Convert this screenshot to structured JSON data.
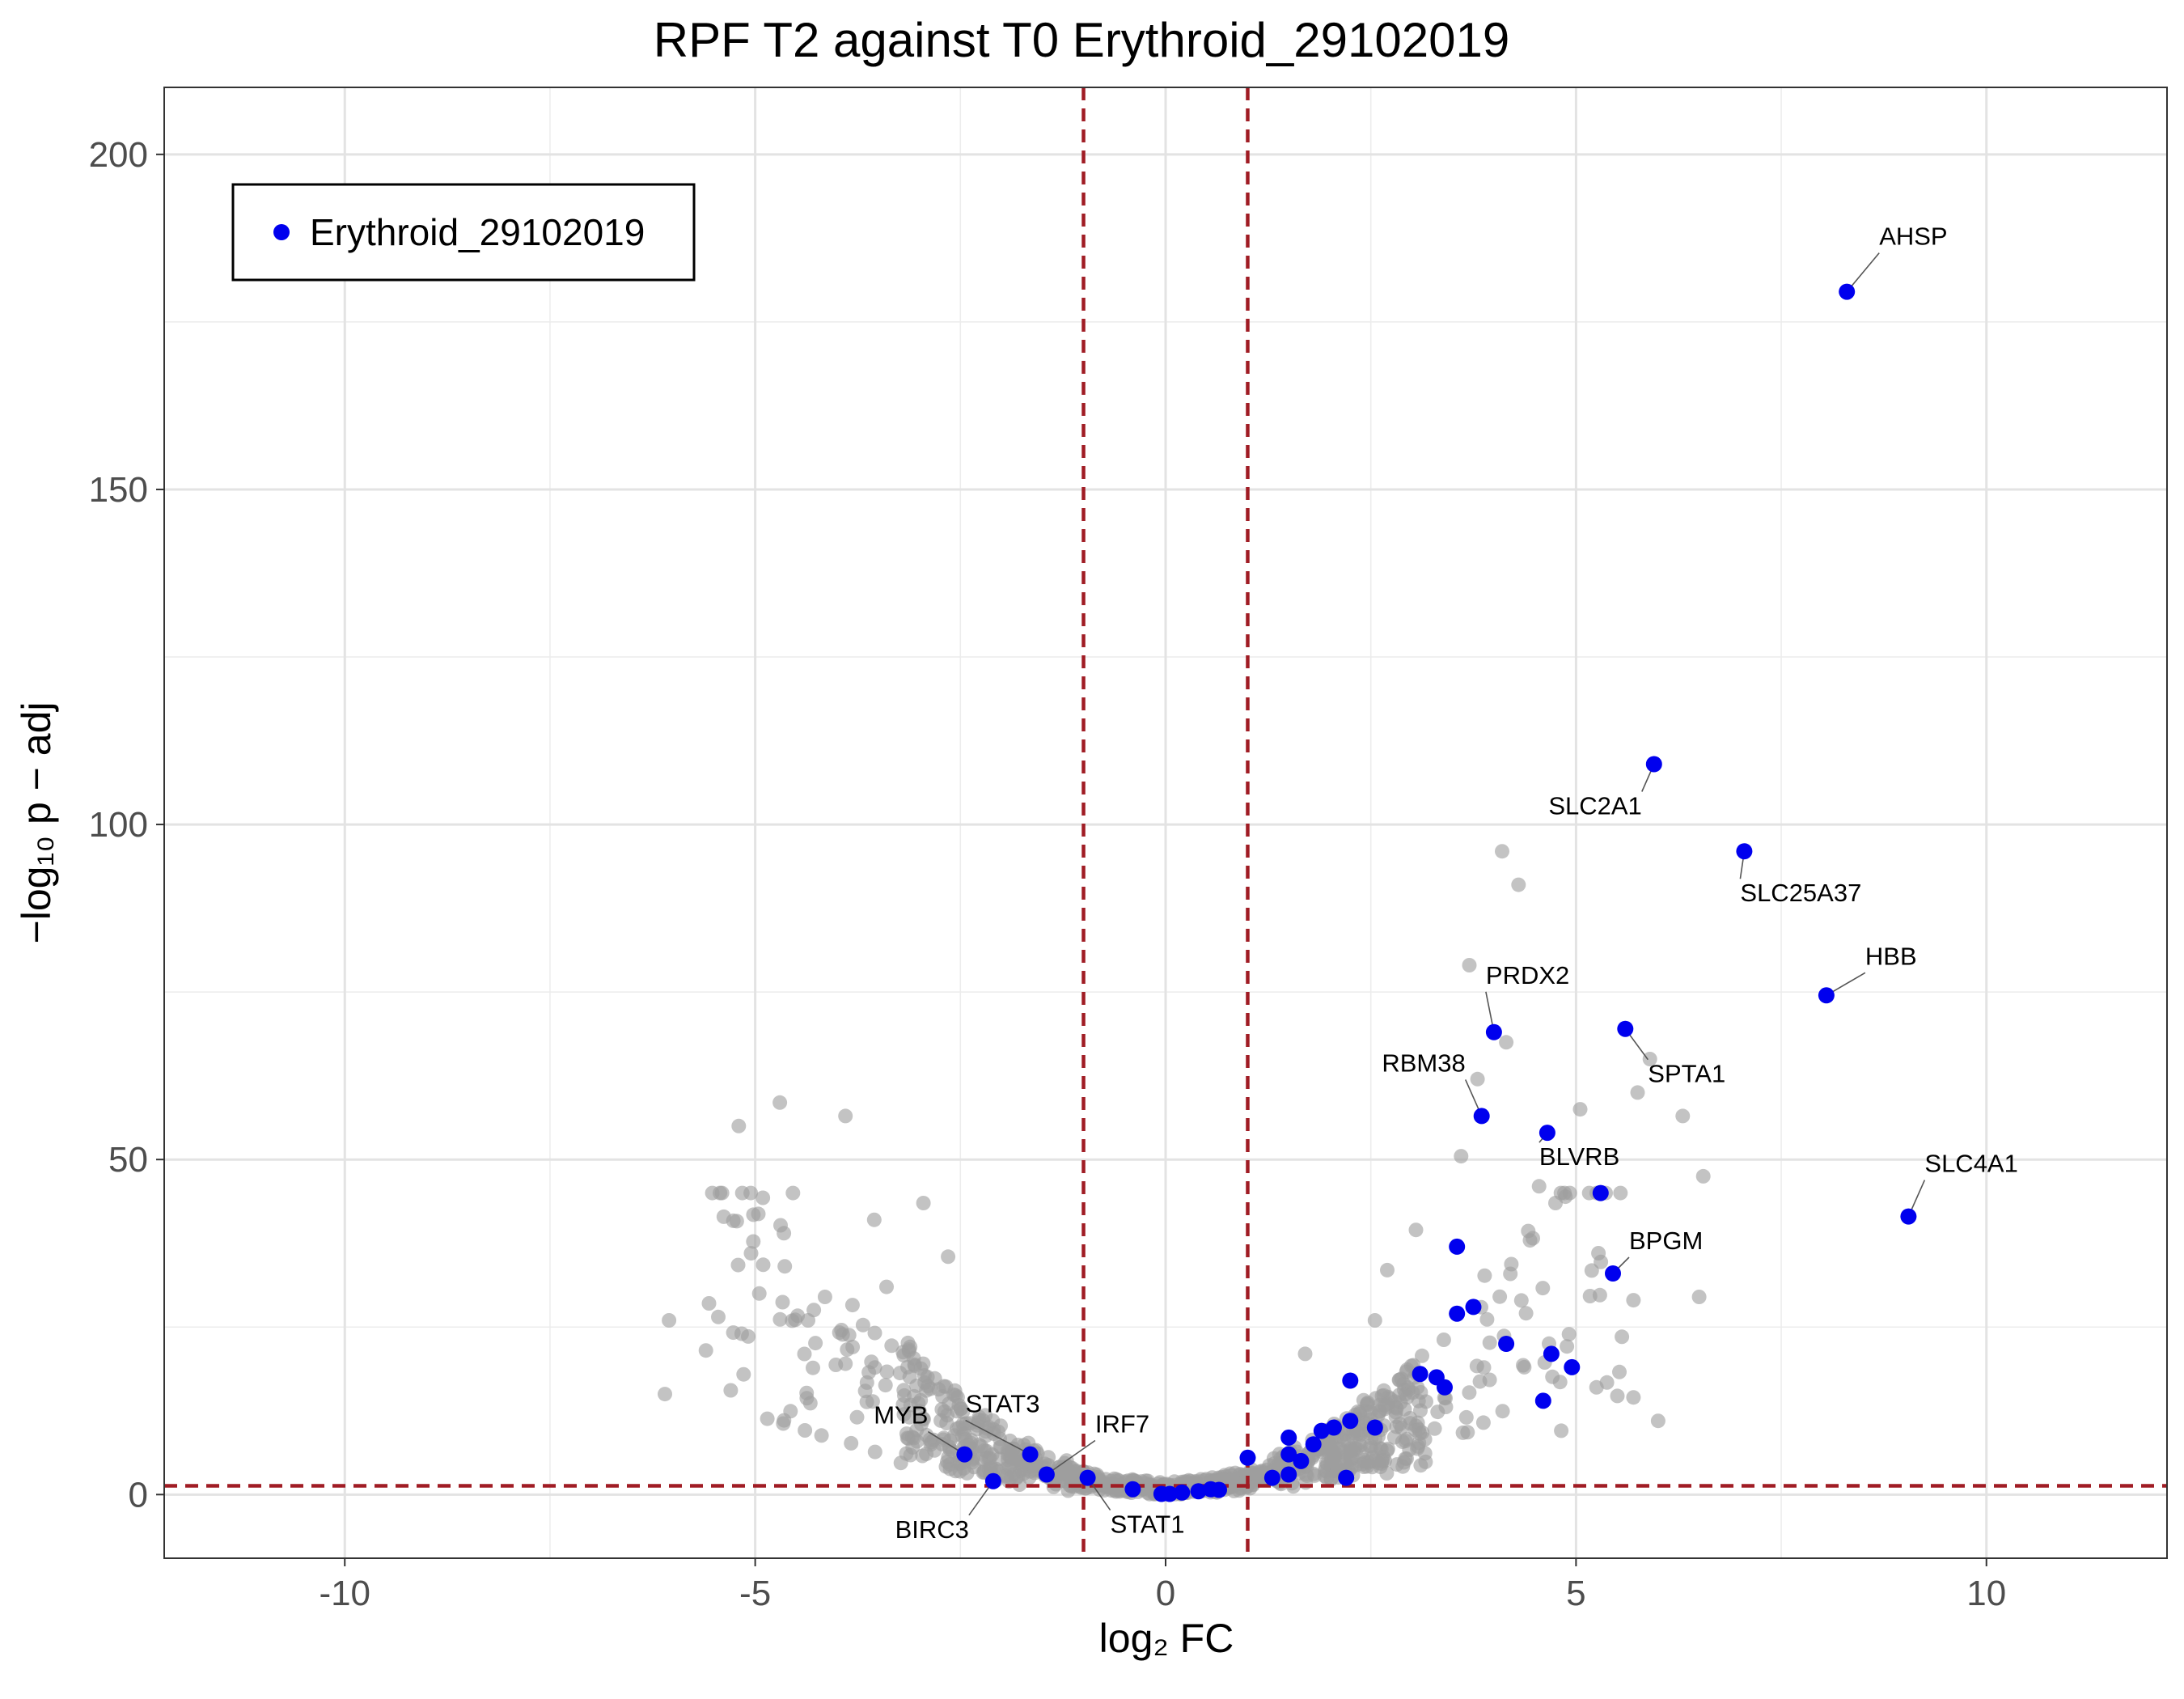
{
  "chart_data": {
    "type": "scatter",
    "title": "RPF T2 against T0 Erythroid_29102019",
    "xlabel": "log₂ FC",
    "ylabel": "−log₁₀ p − adj",
    "xlim": [
      -12.2,
      12.2
    ],
    "ylim": [
      -9.5,
      210
    ],
    "x_ticks": [
      -10,
      -5,
      0,
      5,
      10
    ],
    "x_tick_labels": [
      "-10",
      "-5",
      "0",
      "5",
      "10"
    ],
    "y_ticks": [
      0,
      50,
      100,
      150,
      200
    ],
    "y_tick_labels": [
      "0",
      "50",
      "100",
      "150",
      "200"
    ],
    "grid": true,
    "legend": {
      "position": "top-left",
      "entries": [
        {
          "label": "Erythroid_29102019",
          "color": "#0000ee"
        }
      ]
    },
    "thresholds": {
      "vlines": [
        -1,
        1
      ],
      "hline": 1.3,
      "color": "#a01c24"
    },
    "colors": {
      "background_points": "#9e9e9e",
      "highlight_points": "#0000ee"
    },
    "series": [
      {
        "name": "Erythroid_29102019",
        "points": [
          {
            "x": 8.3,
            "y": 179.5
          },
          {
            "x": 5.95,
            "y": 109
          },
          {
            "x": 7.05,
            "y": 96
          },
          {
            "x": 8.05,
            "y": 74.5
          },
          {
            "x": 4.0,
            "y": 69
          },
          {
            "x": 5.6,
            "y": 69.5
          },
          {
            "x": 3.85,
            "y": 56.5
          },
          {
            "x": 4.65,
            "y": 54
          },
          {
            "x": 5.3,
            "y": 45
          },
          {
            "x": 9.05,
            "y": 41.5
          },
          {
            "x": 5.45,
            "y": 33
          },
          {
            "x": 3.55,
            "y": 37
          },
          {
            "x": 3.55,
            "y": 27
          },
          {
            "x": 3.75,
            "y": 28
          },
          {
            "x": 4.15,
            "y": 22.5
          },
          {
            "x": 4.7,
            "y": 21
          },
          {
            "x": 4.95,
            "y": 19
          },
          {
            "x": 4.6,
            "y": 14
          },
          {
            "x": 3.1,
            "y": 18
          },
          {
            "x": 3.3,
            "y": 17.5
          },
          {
            "x": 3.4,
            "y": 16
          },
          {
            "x": 2.25,
            "y": 17
          },
          {
            "x": 2.55,
            "y": 10
          },
          {
            "x": 2.25,
            "y": 11
          },
          {
            "x": 2.05,
            "y": 10
          },
          {
            "x": 1.9,
            "y": 9.5
          },
          {
            "x": 1.5,
            "y": 8.5
          },
          {
            "x": 1.8,
            "y": 7.5
          },
          {
            "x": 1.5,
            "y": 6
          },
          {
            "x": 1.65,
            "y": 5
          },
          {
            "x": 1.0,
            "y": 5.5
          },
          {
            "x": 1.5,
            "y": 3
          },
          {
            "x": 1.3,
            "y": 2.5
          },
          {
            "x": 2.2,
            "y": 2.5
          },
          {
            "x": 0.55,
            "y": 0.8
          },
          {
            "x": 0.4,
            "y": 0.5
          },
          {
            "x": 0.65,
            "y": 0.7
          },
          {
            "x": 0.2,
            "y": 0.3
          },
          {
            "x": 0.05,
            "y": 0.1
          },
          {
            "x": -0.05,
            "y": 0.1
          },
          {
            "x": -0.4,
            "y": 0.8
          },
          {
            "x": -0.95,
            "y": 2.5
          },
          {
            "x": -1.45,
            "y": 3
          },
          {
            "x": -1.65,
            "y": 6
          },
          {
            "x": -2.45,
            "y": 6
          },
          {
            "x": -2.1,
            "y": 2
          }
        ]
      }
    ],
    "background_sample": [
      {
        "x": -5.2,
        "y": 55
      },
      {
        "x": -4.7,
        "y": 58.5
      },
      {
        "x": -3.9,
        "y": 56.5
      },
      {
        "x": -3.55,
        "y": 41
      },
      {
        "x": -2.95,
        "y": 43.5
      },
      {
        "x": -2.65,
        "y": 35.5
      },
      {
        "x": -4.65,
        "y": 39
      },
      {
        "x": -5.05,
        "y": 36
      },
      {
        "x": -6.05,
        "y": 26
      },
      {
        "x": -6.1,
        "y": 15
      },
      {
        "x": -5.45,
        "y": 26.5
      },
      {
        "x": -5.6,
        "y": 21.5
      },
      {
        "x": -4.95,
        "y": 30
      },
      {
        "x": -4.15,
        "y": 29.5
      },
      {
        "x": -3.4,
        "y": 31
      },
      {
        "x": 4.1,
        "y": 96
      },
      {
        "x": 4.3,
        "y": 91
      },
      {
        "x": 3.7,
        "y": 79
      },
      {
        "x": 4.15,
        "y": 67.5
      },
      {
        "x": 5.75,
        "y": 60
      },
      {
        "x": 5.9,
        "y": 65
      },
      {
        "x": 6.3,
        "y": 56.5
      },
      {
        "x": 6.55,
        "y": 47.5
      },
      {
        "x": 5.05,
        "y": 57.5
      },
      {
        "x": 3.6,
        "y": 50.5
      },
      {
        "x": 3.8,
        "y": 62
      },
      {
        "x": 6.5,
        "y": 29.5
      },
      {
        "x": 6.0,
        "y": 11
      },
      {
        "x": 5.7,
        "y": 14.5
      },
      {
        "x": 5.25,
        "y": 16
      },
      {
        "x": 4.55,
        "y": 46
      },
      {
        "x": 4.75,
        "y": 43.5
      },
      {
        "x": 5.7,
        "y": 29
      },
      {
        "x": 3.05,
        "y": 39.5
      },
      {
        "x": 2.7,
        "y": 33.5
      },
      {
        "x": 2.55,
        "y": 26
      },
      {
        "x": 1.7,
        "y": 21
      }
    ],
    "annotations": [
      {
        "gene": "AHSP",
        "x": 8.3,
        "y": 179.5
      },
      {
        "gene": "SLC2A1",
        "x": 5.95,
        "y": 109
      },
      {
        "gene": "SLC25A37",
        "x": 7.05,
        "y": 96
      },
      {
        "gene": "HBB",
        "x": 8.05,
        "y": 74.5
      },
      {
        "gene": "PRDX2",
        "x": 4.0,
        "y": 69
      },
      {
        "gene": "SPTA1",
        "x": 5.6,
        "y": 69.5
      },
      {
        "gene": "RBM38",
        "x": 3.85,
        "y": 56.5
      },
      {
        "gene": "BLVRB",
        "x": 4.65,
        "y": 54
      },
      {
        "gene": "SLC4A1",
        "x": 9.05,
        "y": 41.5
      },
      {
        "gene": "BPGM",
        "x": 5.45,
        "y": 33
      },
      {
        "gene": "MYB",
        "x": -2.45,
        "y": 6
      },
      {
        "gene": "STAT3",
        "x": -1.65,
        "y": 6
      },
      {
        "gene": "IRF7",
        "x": -1.45,
        "y": 3
      },
      {
        "gene": "BIRC3",
        "x": -2.1,
        "y": 2
      },
      {
        "gene": "STAT1",
        "x": -0.95,
        "y": 2.5
      }
    ]
  }
}
